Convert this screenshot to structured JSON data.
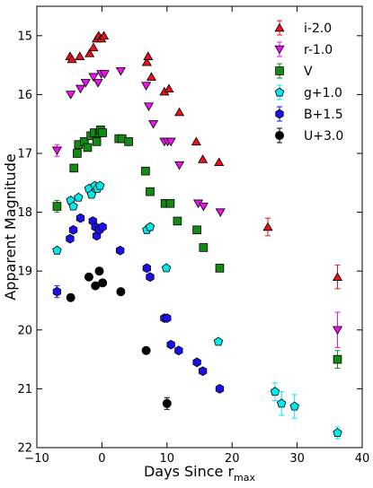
{
  "chart_data": {
    "type": "scatter",
    "title": "",
    "xlabel": "Days Since r",
    "xlabel_subscript": "max",
    "ylabel": "Apparent Magnitude",
    "xlim": [
      -10,
      40
    ],
    "ylim": [
      22,
      14.5
    ],
    "y_inverted": true,
    "x_ticks": [
      -10,
      0,
      10,
      20,
      30,
      40
    ],
    "y_ticks": [
      15,
      16,
      17,
      18,
      19,
      20,
      21,
      22
    ],
    "grid": false,
    "legend_position": "top-right",
    "series": [
      {
        "name": "i-2.0",
        "marker": "triangle-up",
        "color": "#e8101a",
        "points": [
          {
            "x": -4.9,
            "y": 15.35
          },
          {
            "x": -4.6,
            "y": 15.4
          },
          {
            "x": -3.4,
            "y": 15.35
          },
          {
            "x": -1.9,
            "y": 15.3
          },
          {
            "x": -1.3,
            "y": 15.2
          },
          {
            "x": -0.8,
            "y": 15.05
          },
          {
            "x": -0.5,
            "y": 15.0
          },
          {
            "x": -0.1,
            "y": 15.05
          },
          {
            "x": 0.3,
            "y": 15.0
          },
          {
            "x": 6.9,
            "y": 15.45
          },
          {
            "x": 7.1,
            "y": 15.35
          },
          {
            "x": 7.6,
            "y": 15.7
          },
          {
            "x": 9.6,
            "y": 15.95
          },
          {
            "x": 10.3,
            "y": 15.9
          },
          {
            "x": 11.9,
            "y": 16.3
          },
          {
            "x": 14.5,
            "y": 16.8
          },
          {
            "x": 15.5,
            "y": 17.1
          },
          {
            "x": 18.0,
            "y": 17.15
          },
          {
            "x": 25.5,
            "y": 18.25,
            "err": 0.15
          },
          {
            "x": 36.2,
            "y": 19.1,
            "err": 0.2
          }
        ]
      },
      {
        "name": "r-1.0",
        "marker": "triangle-down",
        "color": "#ee10ee",
        "points": [
          {
            "x": -6.9,
            "y": 16.95,
            "err": 0.1
          },
          {
            "x": -4.8,
            "y": 16.0
          },
          {
            "x": -3.3,
            "y": 15.9
          },
          {
            "x": -2.5,
            "y": 15.8
          },
          {
            "x": -1.3,
            "y": 15.7
          },
          {
            "x": -0.6,
            "y": 15.8
          },
          {
            "x": -0.1,
            "y": 15.65
          },
          {
            "x": 0.4,
            "y": 15.65
          },
          {
            "x": 2.9,
            "y": 15.6
          },
          {
            "x": 6.8,
            "y": 15.85
          },
          {
            "x": 7.2,
            "y": 16.2
          },
          {
            "x": 7.9,
            "y": 16.5
          },
          {
            "x": 9.6,
            "y": 16.8
          },
          {
            "x": 10.1,
            "y": 16.8
          },
          {
            "x": 10.6,
            "y": 16.8
          },
          {
            "x": 11.9,
            "y": 17.2
          },
          {
            "x": 14.8,
            "y": 17.85
          },
          {
            "x": 15.6,
            "y": 17.9
          },
          {
            "x": 18.2,
            "y": 18.0
          },
          {
            "x": 36.2,
            "y": 20.0,
            "err": 0.3
          }
        ]
      },
      {
        "name": "V",
        "marker": "square",
        "color": "#138a13",
        "points": [
          {
            "x": -6.9,
            "y": 17.9,
            "err": 0.1
          },
          {
            "x": -4.3,
            "y": 17.25
          },
          {
            "x": -3.8,
            "y": 17.0
          },
          {
            "x": -3.6,
            "y": 16.85
          },
          {
            "x": -2.7,
            "y": 16.8
          },
          {
            "x": -2.2,
            "y": 16.9
          },
          {
            "x": -1.7,
            "y": 16.7
          },
          {
            "x": -1.2,
            "y": 16.65
          },
          {
            "x": -0.8,
            "y": 16.8
          },
          {
            "x": -0.4,
            "y": 16.65
          },
          {
            "x": -0.2,
            "y": 16.6
          },
          {
            "x": 0.1,
            "y": 16.65
          },
          {
            "x": 2.6,
            "y": 16.75
          },
          {
            "x": 3.1,
            "y": 16.75
          },
          {
            "x": 4.1,
            "y": 16.8
          },
          {
            "x": 6.7,
            "y": 17.3
          },
          {
            "x": 7.4,
            "y": 17.65
          },
          {
            "x": 9.7,
            "y": 17.85
          },
          {
            "x": 10.5,
            "y": 17.85
          },
          {
            "x": 11.6,
            "y": 18.15
          },
          {
            "x": 14.6,
            "y": 18.3
          },
          {
            "x": 15.6,
            "y": 18.6
          },
          {
            "x": 18.1,
            "y": 18.95
          },
          {
            "x": 36.2,
            "y": 20.5,
            "err": 0.15
          }
        ]
      },
      {
        "name": "g+1.0",
        "marker": "pentagon",
        "color": "#00e8e8",
        "points": [
          {
            "x": -6.9,
            "y": 18.65
          },
          {
            "x": -4.8,
            "y": 17.8
          },
          {
            "x": -4.4,
            "y": 17.9
          },
          {
            "x": -3.6,
            "y": 17.75
          },
          {
            "x": -2.0,
            "y": 17.6
          },
          {
            "x": -1.6,
            "y": 17.7
          },
          {
            "x": -1.1,
            "y": 17.55
          },
          {
            "x": -0.7,
            "y": 17.6
          },
          {
            "x": -0.3,
            "y": 17.55
          },
          {
            "x": 6.9,
            "y": 18.3
          },
          {
            "x": 7.4,
            "y": 18.25
          },
          {
            "x": 9.9,
            "y": 18.95
          },
          {
            "x": 17.9,
            "y": 20.2
          },
          {
            "x": 26.6,
            "y": 21.05,
            "err": 0.15
          },
          {
            "x": 27.6,
            "y": 21.25,
            "err": 0.2
          },
          {
            "x": 29.6,
            "y": 21.3,
            "err": 0.2
          },
          {
            "x": 36.2,
            "y": 21.75,
            "err": 0.1
          }
        ]
      },
      {
        "name": "B+1.5",
        "marker": "hexagon",
        "color": "#1a10ee",
        "points": [
          {
            "x": -6.9,
            "y": 19.35,
            "err": 0.1
          },
          {
            "x": -4.9,
            "y": 18.45
          },
          {
            "x": -4.4,
            "y": 18.3
          },
          {
            "x": -3.3,
            "y": 18.1
          },
          {
            "x": -1.4,
            "y": 18.15
          },
          {
            "x": -1.0,
            "y": 18.25
          },
          {
            "x": -0.8,
            "y": 18.4
          },
          {
            "x": -0.4,
            "y": 18.3
          },
          {
            "x": 0.1,
            "y": 18.25
          },
          {
            "x": 2.8,
            "y": 18.65
          },
          {
            "x": 6.9,
            "y": 18.95
          },
          {
            "x": 7.4,
            "y": 19.1
          },
          {
            "x": 9.6,
            "y": 19.8
          },
          {
            "x": 10.0,
            "y": 19.8
          },
          {
            "x": 10.6,
            "y": 20.25
          },
          {
            "x": 11.8,
            "y": 20.35
          },
          {
            "x": 14.6,
            "y": 20.55
          },
          {
            "x": 15.5,
            "y": 20.7
          },
          {
            "x": 18.1,
            "y": 21.0
          }
        ]
      },
      {
        "name": "U+3.0",
        "marker": "circle",
        "color": "#000000",
        "points": [
          {
            "x": -4.8,
            "y": 19.45
          },
          {
            "x": -2.0,
            "y": 19.1
          },
          {
            "x": -1.0,
            "y": 19.25
          },
          {
            "x": -0.4,
            "y": 19.0
          },
          {
            "x": 0.1,
            "y": 19.2
          },
          {
            "x": 2.9,
            "y": 19.35
          },
          {
            "x": 6.8,
            "y": 20.35
          },
          {
            "x": 10.0,
            "y": 21.25,
            "err": 0.1
          }
        ]
      }
    ]
  }
}
